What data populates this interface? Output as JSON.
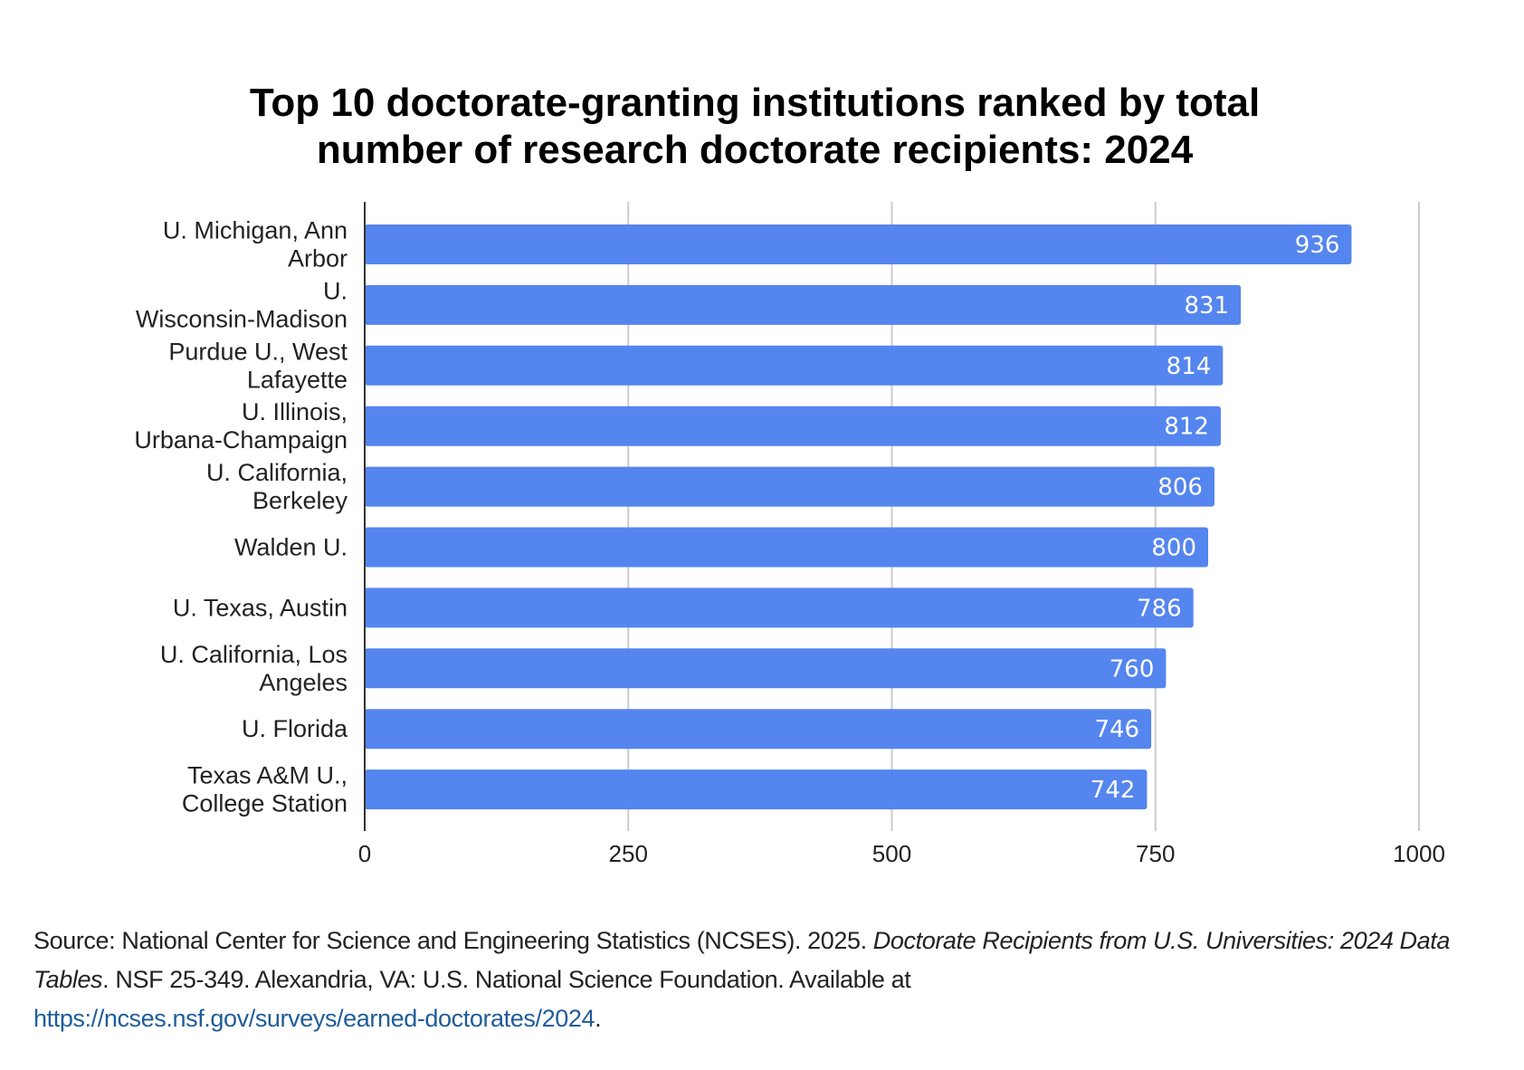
{
  "chart_data": {
    "type": "bar",
    "orientation": "horizontal",
    "title_lines": [
      "Top 10 doctorate-granting institutions ranked by total",
      "number of research doctorate recipients: 2024"
    ],
    "categories": [
      [
        "U. Michigan, Ann",
        "Arbor"
      ],
      [
        "U.",
        "Wisconsin-Madison"
      ],
      [
        "Purdue U., West",
        "Lafayette"
      ],
      [
        "U. Illinois,",
        "Urbana-Champaign"
      ],
      [
        "U. California,",
        "Berkeley"
      ],
      [
        "Walden U."
      ],
      [
        "U. Texas, Austin"
      ],
      [
        "U. California, Los",
        "Angeles"
      ],
      [
        "U. Florida"
      ],
      [
        "Texas A&M U.,",
        "College Station"
      ]
    ],
    "values": [
      936,
      831,
      814,
      812,
      806,
      800,
      786,
      760,
      746,
      742
    ],
    "data_labels": [
      "936",
      "831",
      "814",
      "812",
      "806",
      "800",
      "786",
      "760",
      "746",
      "742"
    ],
    "xlim": [
      0,
      1000
    ],
    "xticks": [
      0,
      250,
      500,
      750,
      1000
    ],
    "xtick_labels": [
      "0",
      "250",
      "500",
      "750",
      "1000"
    ],
    "grid": "vertical",
    "legend": "none",
    "bar_color": "#5585ee"
  },
  "source": {
    "prefix": "Source:  National Center for Science and Engineering Statistics (NCSES). 2025. ",
    "italic": "Doctorate Recipients from U.S. Universities: 2024 Data Tables",
    "suffix": ". NSF 25-349. Alexandria, VA: U.S. National Science Foundation. Available at ",
    "link": "https://ncses.nsf.gov/surveys/earned-doctorates/2024",
    "end": "."
  }
}
